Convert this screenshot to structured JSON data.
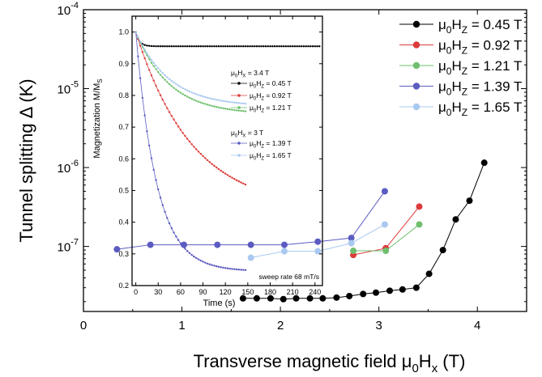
{
  "chart_data": [
    {
      "type": "line",
      "xlabel": "Transverse magnetic field μ0Hx (T)",
      "xlabel_parts": {
        "main": "Transverse magnetic field μ",
        "sub1": "0",
        "mid": "H",
        "sub2": "x",
        "end": " (T)"
      },
      "ylabel": "Tunnel splitting Δ (K)",
      "xlim": [
        0,
        4.5
      ],
      "ylim": [
        1.5e-08,
        0.0001
      ],
      "yscale": "log",
      "xticks": [
        "0",
        "1",
        "2",
        "3",
        "4"
      ],
      "yticks": [
        {
          "base": "10",
          "exp": "-4",
          "value": 0.0001
        },
        {
          "base": "10",
          "exp": "-5",
          "value": 1e-05
        },
        {
          "base": "10",
          "exp": "-6",
          "value": 1e-06
        },
        {
          "base": "10",
          "exp": "-7",
          "value": 1e-07
        }
      ],
      "legend_position": "top-right",
      "series": [
        {
          "name": "μ0HZ = 0.45 T",
          "label_parts": [
            "μ",
            "0",
            "H",
            "Z",
            " = 0.45 T"
          ],
          "color": "#000000",
          "x": [
            1.62,
            1.76,
            1.9,
            2.03,
            2.16,
            2.3,
            2.43,
            2.57,
            2.7,
            2.84,
            2.97,
            3.11,
            3.24,
            3.38,
            3.51,
            3.65,
            3.78,
            3.92,
            4.07
          ],
          "y": [
            2.2e-08,
            2.2e-08,
            2.2e-08,
            2.15e-08,
            2.2e-08,
            2.2e-08,
            2.2e-08,
            2.25e-08,
            2.35e-08,
            2.5e-08,
            2.6e-08,
            2.75e-08,
            2.85e-08,
            3e-08,
            4.5e-08,
            9e-08,
            2.2e-07,
            3.8e-07,
            1.15e-06
          ]
        },
        {
          "name": "μ0HZ = 0.92 T",
          "label_parts": [
            "μ",
            "0",
            "H",
            "Z",
            " = 0.92 T"
          ],
          "color": "#dd3b3b",
          "x": [
            2.74,
            3.07,
            3.41
          ],
          "y": [
            7.8e-08,
            9.5e-08,
            3.2e-07
          ]
        },
        {
          "name": "μ0HZ = 1.21 T",
          "label_parts": [
            "μ",
            "0",
            "H",
            "Z",
            " = 1.21 T"
          ],
          "color": "#6fbf6f",
          "x": [
            2.74,
            3.07,
            3.41
          ],
          "y": [
            8.8e-08,
            8.8e-08,
            1.9e-07
          ]
        },
        {
          "name": "μ0HZ = 1.39 T",
          "label_parts": [
            "μ",
            "0",
            "H",
            "Z",
            " = 1.39 T"
          ],
          "color": "#5b5bc2",
          "x": [
            0.34,
            0.68,
            1.02,
            1.36,
            1.7,
            2.04,
            2.38,
            2.72,
            3.06
          ],
          "y": [
            9.2e-08,
            1.05e-07,
            1.05e-07,
            1.05e-07,
            1.05e-07,
            1.05e-07,
            1.15e-07,
            1.28e-07,
            5e-07
          ]
        },
        {
          "name": "μ0HZ = 1.65 T",
          "label_parts": [
            "μ",
            "0",
            "H",
            "Z",
            " = 1.65 T"
          ],
          "color": "#a9c9f0",
          "x": [
            1.7,
            2.04,
            2.38,
            2.72,
            3.06
          ],
          "y": [
            7.2e-08,
            8.7e-08,
            8.7e-08,
            1.1e-07,
            1.9e-07
          ]
        }
      ]
    },
    {
      "type": "line",
      "xlabel": "Time (s)",
      "ylabel": "Magnetization M/MS",
      "ylabel_parts": {
        "main": "Magnetization M/M",
        "sub": "S"
      },
      "xlim": [
        -5,
        250
      ],
      "ylim": [
        0.2,
        1.05
      ],
      "xticks": [
        0,
        30,
        60,
        90,
        120,
        150,
        180,
        210,
        240
      ],
      "yticks": [
        "0.2",
        "0.3",
        "0.4",
        "0.5",
        "0.6",
        "0.7",
        "0.8",
        "0.9",
        "1.0"
      ],
      "legend_groups": [
        {
          "header_parts": [
            "μ",
            "0",
            "H",
            "X",
            " = 3.4 T"
          ],
          "entries": [
            {
              "label_parts": [
                "μ",
                "0",
                "H",
                "Z",
                " = 0.45 T"
              ],
              "color": "#000000"
            },
            {
              "label_parts": [
                "μ",
                "0",
                "H",
                "Z",
                " = 0.92 T"
              ],
              "color": "#dd3b3b"
            },
            {
              "label_parts": [
                "μ",
                "0",
                "H",
                "Z",
                " = 1.21 T"
              ],
              "color": "#6fbf6f"
            }
          ]
        },
        {
          "header_parts": [
            "μ",
            "0",
            "H",
            "X",
            " = 3 T"
          ],
          "entries": [
            {
              "label_parts": [
                "μ",
                "0",
                "H",
                "Z",
                " = 1.39 T"
              ],
              "color": "#5b5bc2"
            },
            {
              "label_parts": [
                "μ",
                "0",
                "H",
                "Z",
                " = 1.65 T"
              ],
              "color": "#a9c9f0"
            }
          ]
        }
      ],
      "annotation": "sweep rate 68 mT/s",
      "curves": [
        {
          "label": "μ0HZ = 0.45 T",
          "color": "#000000",
          "tmax": 246,
          "m_inf": 0.955,
          "a": 0.045,
          "tau": 5
        },
        {
          "label": "μ0HZ = 0.92 T",
          "color": "#dd3b3b",
          "tmax": 147,
          "m_inf": 0.44,
          "a": 0.56,
          "tau": 75
        },
        {
          "label": "μ0HZ = 1.21 T",
          "color": "#6fbf6f",
          "tmax": 147,
          "m_inf": 0.74,
          "a": 0.26,
          "tau": 45
        },
        {
          "label": "μ0HZ = 1.39 T",
          "color": "#5b5bc2",
          "tmax": 147,
          "m_inf": 0.245,
          "a": 0.755,
          "tau": 28
        },
        {
          "label": "μ0HZ = 1.65 T",
          "color": "#a9c9f0",
          "tmax": 147,
          "m_inf": 0.765,
          "a": 0.235,
          "tau": 45
        }
      ]
    }
  ]
}
